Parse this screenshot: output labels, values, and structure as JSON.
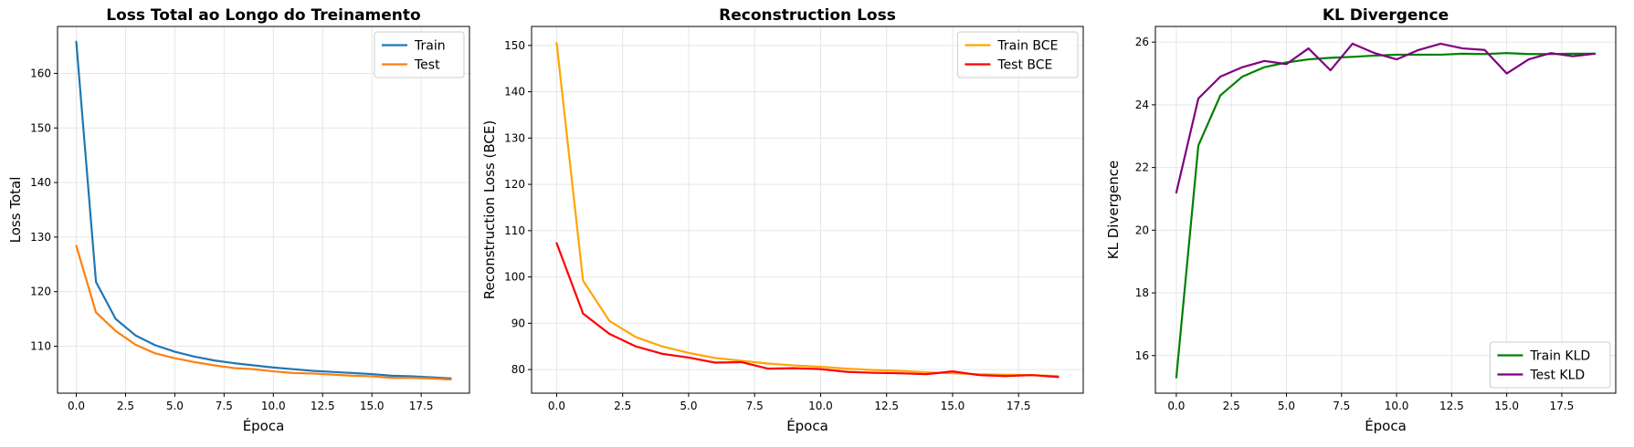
{
  "chart_data": [
    {
      "type": "line",
      "title": "Loss Total ao Longo do Treinamento",
      "xlabel": "Época",
      "ylabel": "Loss Total",
      "xlim": [
        -0.95,
        19.95
      ],
      "ylim": [
        101.4,
        168.6
      ],
      "xticks": [
        0.0,
        2.5,
        5.0,
        7.5,
        10.0,
        12.5,
        15.0,
        17.5
      ],
      "xtick_labels": [
        "0.0",
        "2.5",
        "5.0",
        "7.5",
        "10.0",
        "12.5",
        "15.0",
        "17.5"
      ],
      "yticks": [
        110,
        120,
        130,
        140,
        150,
        160
      ],
      "ytick_labels": [
        "110",
        "120",
        "130",
        "140",
        "150",
        "160"
      ],
      "grid": true,
      "legend_position": "upper right",
      "x": [
        0,
        1,
        2,
        3,
        4,
        5,
        6,
        7,
        8,
        9,
        10,
        11,
        12,
        13,
        14,
        15,
        16,
        17,
        18,
        19
      ],
      "series": [
        {
          "name": "Train",
          "color": "#1f77b4",
          "values": [
            165.8,
            121.8,
            115.0,
            112.0,
            110.2,
            109.0,
            108.1,
            107.4,
            106.9,
            106.5,
            106.1,
            105.8,
            105.5,
            105.3,
            105.1,
            104.9,
            104.6,
            104.5,
            104.3,
            104.1
          ]
        },
        {
          "name": "Test",
          "color": "#ff7f0e",
          "values": [
            128.4,
            116.2,
            112.8,
            110.3,
            108.7,
            107.8,
            107.1,
            106.5,
            106.0,
            105.8,
            105.4,
            105.1,
            105.0,
            104.8,
            104.6,
            104.5,
            104.2,
            104.2,
            104.1,
            103.9
          ]
        }
      ]
    },
    {
      "type": "line",
      "title": "Reconstruction Loss",
      "xlabel": "Época",
      "ylabel": "Reconstruction Loss (BCE)",
      "xlim": [
        -0.95,
        19.95
      ],
      "ylim": [
        74.9,
        154.1
      ],
      "xticks": [
        0.0,
        2.5,
        5.0,
        7.5,
        10.0,
        12.5,
        15.0,
        17.5
      ],
      "xtick_labels": [
        "0.0",
        "2.5",
        "5.0",
        "7.5",
        "10.0",
        "12.5",
        "15.0",
        "17.5"
      ],
      "yticks": [
        80,
        90,
        100,
        110,
        120,
        130,
        140,
        150
      ],
      "ytick_labels": [
        "80",
        "90",
        "100",
        "110",
        "120",
        "130",
        "140",
        "150"
      ],
      "grid": true,
      "legend_position": "upper right",
      "x": [
        0,
        1,
        2,
        3,
        4,
        5,
        6,
        7,
        8,
        9,
        10,
        11,
        12,
        13,
        14,
        15,
        16,
        17,
        18,
        19
      ],
      "series": [
        {
          "name": "Train BCE",
          "color": "#ffa500",
          "values": [
            150.5,
            99.2,
            90.5,
            87.0,
            85.0,
            83.6,
            82.5,
            81.9,
            81.3,
            80.9,
            80.6,
            80.2,
            79.9,
            79.7,
            79.4,
            79.2,
            79.0,
            78.9,
            78.8,
            78.6
          ]
        },
        {
          "name": "Test BCE",
          "color": "#ff0000",
          "values": [
            107.3,
            92.1,
            87.7,
            85.0,
            83.4,
            82.6,
            81.5,
            81.6,
            80.2,
            80.3,
            80.1,
            79.5,
            79.3,
            79.2,
            79.0,
            79.6,
            78.8,
            78.6,
            78.8,
            78.4
          ]
        }
      ]
    },
    {
      "type": "line",
      "title": "KL Divergence",
      "xlabel": "Época",
      "ylabel": "KL Divergence",
      "xlim": [
        -0.95,
        19.95
      ],
      "ylim": [
        14.8,
        26.5
      ],
      "xticks": [
        0.0,
        2.5,
        5.0,
        7.5,
        10.0,
        12.5,
        15.0,
        17.5
      ],
      "xtick_labels": [
        "0.0",
        "2.5",
        "5.0",
        "7.5",
        "10.0",
        "12.5",
        "15.0",
        "17.5"
      ],
      "yticks": [
        16,
        18,
        20,
        22,
        24,
        26
      ],
      "ytick_labels": [
        "16",
        "18",
        "20",
        "22",
        "24",
        "26"
      ],
      "grid": true,
      "legend_position": "lower right",
      "x": [
        0,
        1,
        2,
        3,
        4,
        5,
        6,
        7,
        8,
        9,
        10,
        11,
        12,
        13,
        14,
        15,
        16,
        17,
        18,
        19
      ],
      "series": [
        {
          "name": "Train KLD",
          "color": "#008000",
          "values": [
            15.3,
            22.7,
            24.3,
            24.9,
            25.2,
            25.35,
            25.45,
            25.5,
            25.53,
            25.57,
            25.6,
            25.6,
            25.6,
            25.63,
            25.62,
            25.65,
            25.62,
            25.62,
            25.63,
            25.63
          ]
        },
        {
          "name": "Test KLD",
          "color": "#800080",
          "values": [
            21.2,
            24.2,
            24.9,
            25.2,
            25.4,
            25.3,
            25.8,
            25.1,
            25.95,
            25.65,
            25.45,
            25.75,
            25.95,
            25.8,
            25.75,
            25.0,
            25.45,
            25.65,
            25.55,
            25.63
          ]
        }
      ]
    }
  ]
}
